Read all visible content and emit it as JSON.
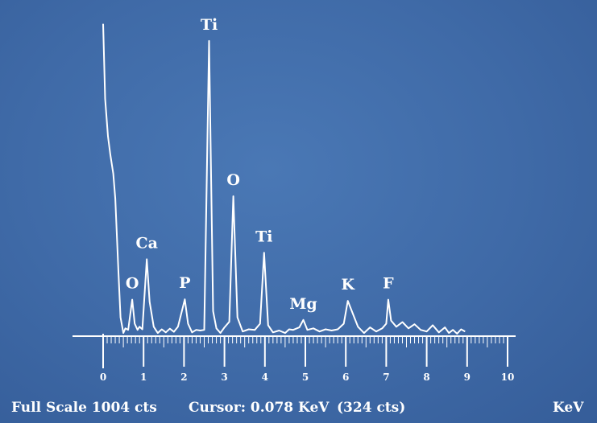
{
  "chart_data": {
    "type": "line",
    "title": "",
    "xlabel": "KeV",
    "ylabel": "",
    "xlim": [
      0,
      10
    ],
    "ylim": [
      0,
      1004
    ],
    "x_ticks": [
      "0",
      "1",
      "2",
      "3",
      "4",
      "5",
      "6",
      "7",
      "8",
      "9",
      "10"
    ],
    "series": [
      {
        "values": [
          [
            0.0,
            1000
          ],
          [
            0.05,
            760
          ],
          [
            0.12,
            640
          ],
          [
            0.18,
            580
          ],
          [
            0.25,
            520
          ],
          [
            0.3,
            440
          ],
          [
            0.38,
            200
          ],
          [
            0.43,
            60
          ],
          [
            0.5,
            10
          ],
          [
            0.55,
            25
          ],
          [
            0.62,
            20
          ],
          [
            0.72,
            117
          ],
          [
            0.78,
            40
          ],
          [
            0.85,
            20
          ],
          [
            0.9,
            30
          ],
          [
            0.97,
            22
          ],
          [
            1.08,
            246
          ],
          [
            1.15,
            110
          ],
          [
            1.25,
            30
          ],
          [
            1.35,
            10
          ],
          [
            1.45,
            22
          ],
          [
            1.55,
            12
          ],
          [
            1.65,
            24
          ],
          [
            1.75,
            14
          ],
          [
            1.85,
            30
          ],
          [
            2.02,
            118
          ],
          [
            2.1,
            40
          ],
          [
            2.2,
            12
          ],
          [
            2.3,
            20
          ],
          [
            2.4,
            18
          ],
          [
            2.5,
            20
          ],
          [
            2.62,
            945
          ],
          [
            2.72,
            80
          ],
          [
            2.8,
            25
          ],
          [
            2.9,
            10
          ],
          [
            3.0,
            28
          ],
          [
            3.12,
            46
          ],
          [
            3.22,
            448
          ],
          [
            3.32,
            60
          ],
          [
            3.45,
            15
          ],
          [
            3.6,
            22
          ],
          [
            3.75,
            20
          ],
          [
            3.88,
            40
          ],
          [
            3.98,
            267
          ],
          [
            4.08,
            35
          ],
          [
            4.2,
            12
          ],
          [
            4.35,
            18
          ],
          [
            4.5,
            10
          ],
          [
            4.6,
            22
          ],
          [
            4.7,
            20
          ],
          [
            4.85,
            28
          ],
          [
            4.95,
            52
          ],
          [
            5.05,
            20
          ],
          [
            5.2,
            25
          ],
          [
            5.35,
            15
          ],
          [
            5.5,
            22
          ],
          [
            5.65,
            18
          ],
          [
            5.8,
            22
          ],
          [
            5.95,
            40
          ],
          [
            6.05,
            113
          ],
          [
            6.15,
            80
          ],
          [
            6.3,
            30
          ],
          [
            6.45,
            10
          ],
          [
            6.6,
            28
          ],
          [
            6.75,
            15
          ],
          [
            6.9,
            25
          ],
          [
            7.0,
            40
          ],
          [
            7.05,
            117
          ],
          [
            7.12,
            50
          ],
          [
            7.25,
            30
          ],
          [
            7.4,
            45
          ],
          [
            7.55,
            25
          ],
          [
            7.7,
            38
          ],
          [
            7.85,
            20
          ],
          [
            8.0,
            15
          ],
          [
            8.15,
            35
          ],
          [
            8.3,
            12
          ],
          [
            8.45,
            28
          ],
          [
            8.55,
            10
          ],
          [
            8.65,
            20
          ],
          [
            8.75,
            8
          ],
          [
            8.85,
            22
          ],
          [
            8.95,
            15
          ]
        ]
      }
    ],
    "peaks": [
      {
        "label": "O",
        "x": 0.72,
        "y": 117
      },
      {
        "label": "Ca",
        "x": 1.08,
        "y": 246
      },
      {
        "label": "P",
        "x": 2.02,
        "y": 118
      },
      {
        "label": "Ti",
        "x": 2.62,
        "y": 945
      },
      {
        "label": "O",
        "x": 3.22,
        "y": 448
      },
      {
        "label": "Ti",
        "x": 3.98,
        "y": 267
      },
      {
        "label": "Mg",
        "x": 4.95,
        "y": 52
      },
      {
        "label": "K",
        "x": 6.05,
        "y": 113
      },
      {
        "label": "F",
        "x": 7.05,
        "y": 117
      }
    ],
    "grid": false,
    "line_color": "#ffffff",
    "background_color": "#3f6aa7"
  },
  "status": {
    "full_scale": "Full Scale 1004 cts",
    "cursor": "Cursor: 0.078  KeV",
    "cursor_counts": "(324 cts)",
    "unit": "KeV"
  }
}
